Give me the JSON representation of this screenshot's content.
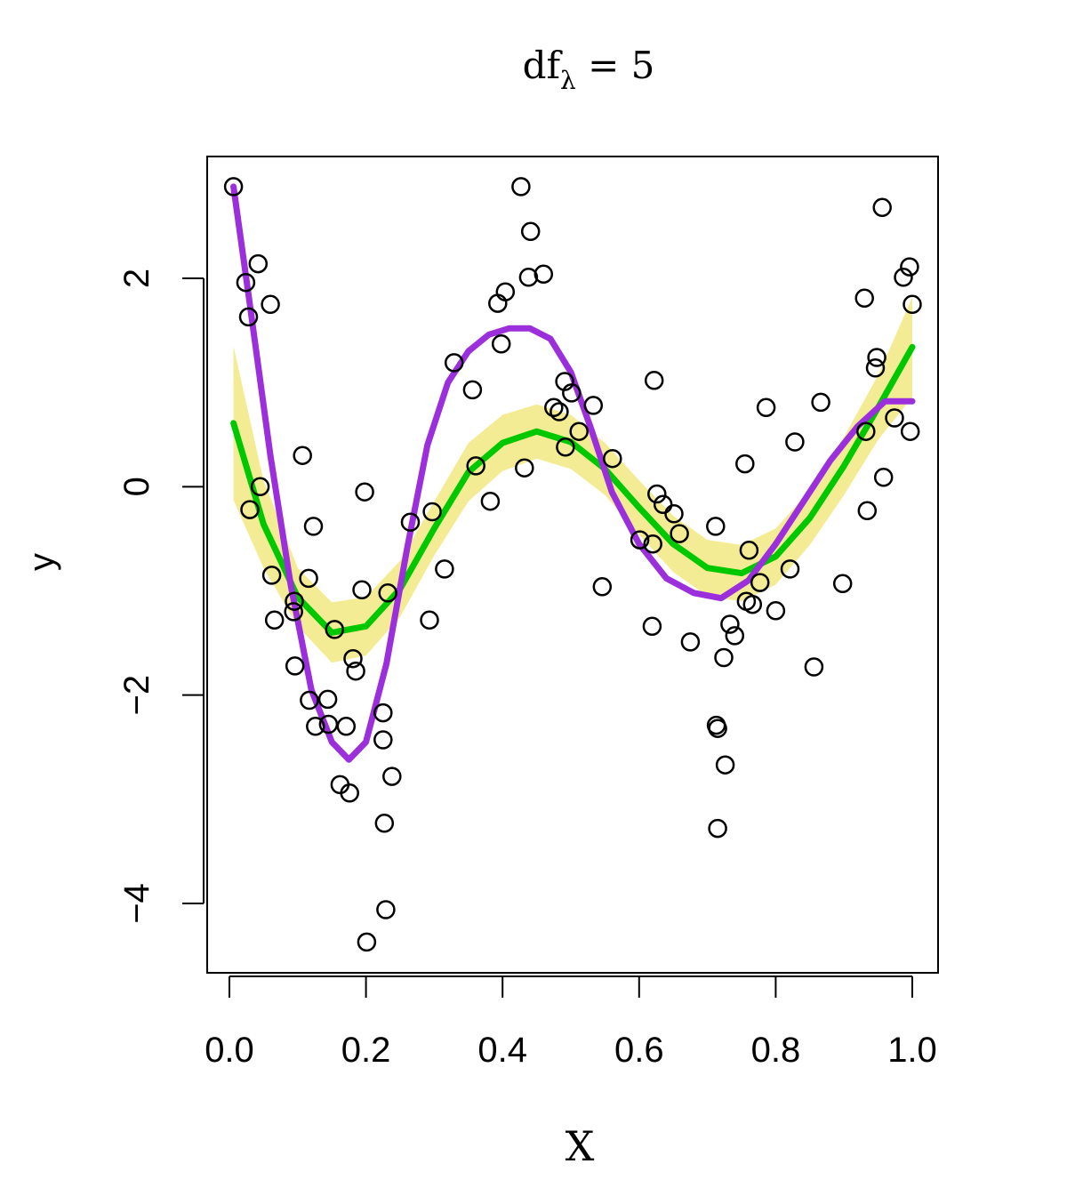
{
  "chart_data": {
    "type": "scatter",
    "title": {
      "main": "df",
      "subscript": "λ",
      "rest": " = 5"
    },
    "xlabel": "X",
    "ylabel": "y",
    "xlim": [
      -0.01,
      1.04
    ],
    "ylim": [
      -4.6,
      3.2
    ],
    "x_ticks": [
      0.0,
      0.2,
      0.4,
      0.6,
      0.8,
      1.0
    ],
    "x_tick_labels": [
      "0.0",
      "0.2",
      "0.4",
      "0.6",
      "0.8",
      "1.0"
    ],
    "y_ticks": [
      -4,
      -2,
      0,
      2
    ],
    "y_tick_labels": [
      "−4",
      "−2",
      "0",
      "2"
    ],
    "grid": false,
    "colors": {
      "points": "#000000",
      "band": "#f4ec94",
      "smooth_fit": "#00c800",
      "true_function": "#9b2fdc"
    },
    "points": [
      {
        "x": 0.006,
        "y": 2.88
      },
      {
        "x": 0.024,
        "y": 1.96
      },
      {
        "x": 0.028,
        "y": 1.63
      },
      {
        "x": 0.03,
        "y": -0.22
      },
      {
        "x": 0.042,
        "y": 2.14
      },
      {
        "x": 0.045,
        "y": 0.0
      },
      {
        "x": 0.06,
        "y": 1.75
      },
      {
        "x": 0.062,
        "y": -0.85
      },
      {
        "x": 0.066,
        "y": -1.28
      },
      {
        "x": 0.094,
        "y": -1.2
      },
      {
        "x": 0.095,
        "y": -1.1
      },
      {
        "x": 0.096,
        "y": -1.72
      },
      {
        "x": 0.107,
        "y": 0.3
      },
      {
        "x": 0.116,
        "y": -0.88
      },
      {
        "x": 0.117,
        "y": -2.05
      },
      {
        "x": 0.123,
        "y": -0.38
      },
      {
        "x": 0.126,
        "y": -2.3
      },
      {
        "x": 0.144,
        "y": -2.04
      },
      {
        "x": 0.145,
        "y": -2.28
      },
      {
        "x": 0.154,
        "y": -1.37
      },
      {
        "x": 0.162,
        "y": -2.86
      },
      {
        "x": 0.171,
        "y": -2.3
      },
      {
        "x": 0.176,
        "y": -2.94
      },
      {
        "x": 0.181,
        "y": -1.65
      },
      {
        "x": 0.185,
        "y": -1.77
      },
      {
        "x": 0.194,
        "y": -0.99
      },
      {
        "x": 0.198,
        "y": -0.05
      },
      {
        "x": 0.201,
        "y": -4.37
      },
      {
        "x": 0.225,
        "y": -2.17
      },
      {
        "x": 0.225,
        "y": -2.43
      },
      {
        "x": 0.227,
        "y": -3.23
      },
      {
        "x": 0.229,
        "y": -4.06
      },
      {
        "x": 0.232,
        "y": -1.02
      },
      {
        "x": 0.238,
        "y": -2.78
      },
      {
        "x": 0.265,
        "y": -0.34
      },
      {
        "x": 0.293,
        "y": -1.28
      },
      {
        "x": 0.297,
        "y": -0.24
      },
      {
        "x": 0.315,
        "y": -0.79
      },
      {
        "x": 0.329,
        "y": 1.19
      },
      {
        "x": 0.356,
        "y": 0.93
      },
      {
        "x": 0.361,
        "y": 0.2
      },
      {
        "x": 0.382,
        "y": -0.14
      },
      {
        "x": 0.393,
        "y": 1.76
      },
      {
        "x": 0.398,
        "y": 1.37
      },
      {
        "x": 0.404,
        "y": 1.87
      },
      {
        "x": 0.427,
        "y": 2.88
      },
      {
        "x": 0.432,
        "y": 0.18
      },
      {
        "x": 0.438,
        "y": 2.01
      },
      {
        "x": 0.441,
        "y": 2.45
      },
      {
        "x": 0.46,
        "y": 2.04
      },
      {
        "x": 0.475,
        "y": 0.76
      },
      {
        "x": 0.483,
        "y": 0.72
      },
      {
        "x": 0.491,
        "y": 1.01
      },
      {
        "x": 0.492,
        "y": 0.38
      },
      {
        "x": 0.501,
        "y": 0.9
      },
      {
        "x": 0.512,
        "y": 0.53
      },
      {
        "x": 0.533,
        "y": 0.78
      },
      {
        "x": 0.546,
        "y": -0.96
      },
      {
        "x": 0.561,
        "y": 0.27
      },
      {
        "x": 0.601,
        "y": -0.51
      },
      {
        "x": 0.619,
        "y": -1.34
      },
      {
        "x": 0.62,
        "y": -0.55
      },
      {
        "x": 0.622,
        "y": 1.02
      },
      {
        "x": 0.626,
        "y": -0.07
      },
      {
        "x": 0.635,
        "y": -0.17
      },
      {
        "x": 0.651,
        "y": -0.26
      },
      {
        "x": 0.659,
        "y": -0.45
      },
      {
        "x": 0.675,
        "y": -1.49
      },
      {
        "x": 0.712,
        "y": -0.38
      },
      {
        "x": 0.713,
        "y": -2.29
      },
      {
        "x": 0.715,
        "y": -2.32
      },
      {
        "x": 0.715,
        "y": -3.28
      },
      {
        "x": 0.724,
        "y": -1.64
      },
      {
        "x": 0.726,
        "y": -2.67
      },
      {
        "x": 0.733,
        "y": -1.32
      },
      {
        "x": 0.74,
        "y": -1.43
      },
      {
        "x": 0.755,
        "y": 0.22
      },
      {
        "x": 0.757,
        "y": -1.1
      },
      {
        "x": 0.761,
        "y": -0.61
      },
      {
        "x": 0.766,
        "y": -1.13
      },
      {
        "x": 0.777,
        "y": -0.92
      },
      {
        "x": 0.786,
        "y": 0.76
      },
      {
        "x": 0.8,
        "y": -1.19
      },
      {
        "x": 0.821,
        "y": -0.79
      },
      {
        "x": 0.828,
        "y": 0.43
      },
      {
        "x": 0.856,
        "y": -1.73
      },
      {
        "x": 0.866,
        "y": 0.81
      },
      {
        "x": 0.898,
        "y": -0.93
      },
      {
        "x": 0.93,
        "y": 1.81
      },
      {
        "x": 0.932,
        "y": 0.53
      },
      {
        "x": 0.934,
        "y": -0.23
      },
      {
        "x": 0.946,
        "y": 1.14
      },
      {
        "x": 0.948,
        "y": 1.24
      },
      {
        "x": 0.956,
        "y": 2.68
      },
      {
        "x": 0.958,
        "y": 0.09
      },
      {
        "x": 0.974,
        "y": 0.66
      },
      {
        "x": 0.987,
        "y": 2.01
      },
      {
        "x": 0.996,
        "y": 2.11
      },
      {
        "x": 0.997,
        "y": 0.53
      },
      {
        "x": 1.0,
        "y": 1.75
      }
    ],
    "smooth_fit": {
      "x": [
        0.006,
        0.05,
        0.1,
        0.15,
        0.2,
        0.25,
        0.3,
        0.35,
        0.4,
        0.45,
        0.5,
        0.55,
        0.6,
        0.65,
        0.7,
        0.75,
        0.8,
        0.85,
        0.9,
        0.95,
        1.0
      ],
      "y": [
        0.61,
        -0.36,
        -1.06,
        -1.4,
        -1.34,
        -0.98,
        -0.4,
        0.14,
        0.42,
        0.53,
        0.43,
        0.17,
        -0.2,
        -0.55,
        -0.78,
        -0.83,
        -0.67,
        -0.3,
        0.2,
        0.76,
        1.34
      ],
      "lower": [
        -0.13,
        -0.78,
        -1.34,
        -1.69,
        -1.62,
        -1.25,
        -0.66,
        -0.14,
        0.15,
        0.27,
        0.17,
        -0.08,
        -0.46,
        -0.82,
        -1.05,
        -1.1,
        -0.94,
        -0.56,
        -0.08,
        0.45,
        0.86
      ],
      "upper": [
        1.35,
        0.06,
        -0.78,
        -1.11,
        -1.06,
        -0.71,
        -0.14,
        0.42,
        0.69,
        0.79,
        0.69,
        0.42,
        0.06,
        -0.28,
        -0.51,
        -0.56,
        -0.4,
        -0.04,
        0.48,
        1.07,
        1.82
      ]
    },
    "true_function": {
      "x": [
        0.006,
        0.03,
        0.06,
        0.09,
        0.12,
        0.15,
        0.175,
        0.2,
        0.23,
        0.26,
        0.29,
        0.32,
        0.35,
        0.38,
        0.41,
        0.44,
        0.47,
        0.5,
        0.53,
        0.56,
        0.6,
        0.64,
        0.68,
        0.72,
        0.76,
        0.8,
        0.84,
        0.88,
        0.92,
        0.96,
        1.0
      ],
      "y": [
        2.88,
        1.75,
        0.3,
        -0.95,
        -1.95,
        -2.45,
        -2.62,
        -2.45,
        -1.7,
        -0.6,
        0.4,
        1.0,
        1.3,
        1.46,
        1.52,
        1.52,
        1.42,
        1.1,
        0.55,
        -0.05,
        -0.55,
        -0.88,
        -1.02,
        -1.07,
        -0.9,
        -0.55,
        -0.15,
        0.25,
        0.58,
        0.82,
        0.82
      ]
    }
  }
}
